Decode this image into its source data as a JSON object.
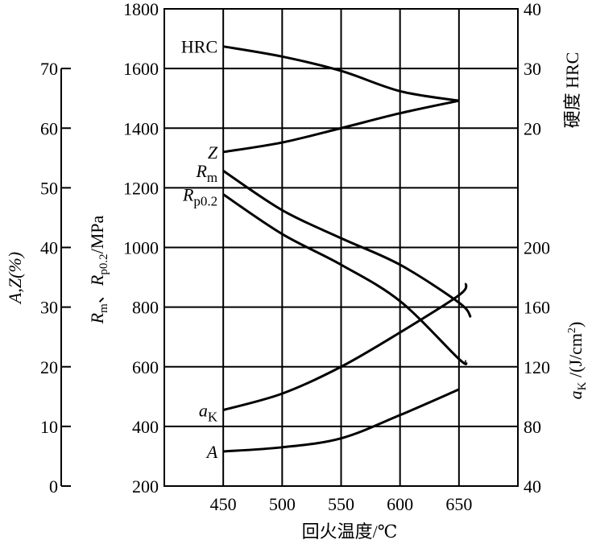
{
  "chart_data": {
    "type": "line",
    "xlabel": "回火温度/℃",
    "x_ticks": [
      450,
      500,
      550,
      600,
      650
    ],
    "xlim": [
      400,
      700
    ],
    "axes": {
      "left_main": {
        "label_parts": [
          "R",
          "m",
          "、",
          "R",
          "p0.2",
          "/MPa"
        ],
        "ylim": [
          200,
          1800
        ],
        "ticks": [
          200,
          400,
          600,
          800,
          1000,
          1200,
          1400,
          1600,
          1800
        ]
      },
      "left_outer": {
        "label": "A,Z(%)",
        "ylim": [
          0,
          80
        ],
        "ticks": [
          0,
          10,
          20,
          30,
          40,
          50,
          60,
          70
        ]
      },
      "right_top": {
        "label": "硬度 HRC",
        "ticks": [
          20,
          30,
          40
        ]
      },
      "right_bottom": {
        "label_parts": [
          "a",
          "K",
          " /(J/cm",
          "2",
          ")"
        ],
        "ticks": [
          40,
          80,
          120,
          160,
          200
        ]
      }
    },
    "grid": true,
    "series": [
      {
        "name": "HRC",
        "label": "HRC",
        "axis": "HRC",
        "x": [
          450,
          500,
          550,
          600,
          650
        ],
        "y": [
          33.7,
          32,
          29.6,
          26.2,
          24.6
        ]
      },
      {
        "name": "Z",
        "label": "Z",
        "axis": "percent",
        "x": [
          450,
          500,
          550,
          600,
          650
        ],
        "y": [
          56,
          57.6,
          60,
          62.5,
          64.6
        ]
      },
      {
        "name": "Rm",
        "label": "R",
        "sub": "m",
        "axis": "MPa",
        "x": [
          450,
          500,
          550,
          600,
          650,
          660
        ],
        "y": [
          1257,
          1125,
          1031,
          942,
          815,
          766
        ]
      },
      {
        "name": "Rp0.2",
        "label": "R",
        "sub": "p0.2",
        "axis": "MPa",
        "x": [
          450,
          500,
          550,
          600,
          650,
          656
        ],
        "y": [
          1178,
          1045,
          942,
          820,
          626,
          618
        ]
      },
      {
        "name": "aK",
        "label": "a",
        "sub": "K",
        "axis": "aK",
        "x": [
          450,
          500,
          550,
          600,
          650,
          656
        ],
        "y": [
          91,
          102,
          120,
          143,
          168,
          176
        ]
      },
      {
        "name": "A",
        "label": "A",
        "axis": "percent",
        "x": [
          450,
          500,
          550,
          600,
          650
        ],
        "y": [
          5.8,
          6.5,
          8,
          11.9,
          16.2
        ]
      }
    ]
  }
}
